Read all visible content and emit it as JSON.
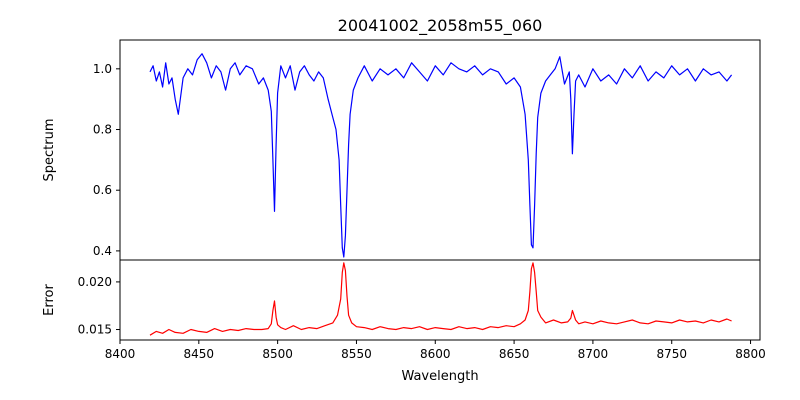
{
  "chart_data": {
    "title": "20041002_2058m55_060",
    "xlabel": "Wavelength",
    "xlim": [
      8400,
      8806
    ],
    "xticks": [
      "8400",
      "8450",
      "8500",
      "8550",
      "8600",
      "8650",
      "8700",
      "8750",
      "8800"
    ],
    "colors": {
      "spectrum": "#0000ff",
      "error": "#ff0000",
      "axes": "#000000"
    },
    "panels": [
      {
        "type": "line",
        "ylabel": "Spectrum",
        "ylim": [
          0.37,
          1.095
        ],
        "yticks": [
          "0.4",
          "0.6",
          "0.8",
          "1.0"
        ],
        "series": [
          {
            "color": "#0000ff",
            "x": [
              8419,
              8421,
              8423,
              8425,
              8427,
              8429,
              8431,
              8433,
              8435,
              8437,
              8440,
              8443,
              8446,
              8449,
              8452,
              8455,
              8458,
              8461,
              8464,
              8467,
              8470,
              8473,
              8476,
              8480,
              8484,
              8488,
              8491,
              8494,
              8496,
              8497,
              8498,
              8499,
              8500,
              8502,
              8505,
              8508,
              8511,
              8514,
              8517,
              8520,
              8523,
              8526,
              8529,
              8532,
              8535,
              8537,
              8539,
              8540,
              8541,
              8542,
              8543,
              8544,
              8545,
              8546,
              8548,
              8551,
              8555,
              8560,
              8565,
              8570,
              8575,
              8580,
              8585,
              8590,
              8595,
              8600,
              8605,
              8610,
              8615,
              8620,
              8625,
              8630,
              8635,
              8640,
              8645,
              8650,
              8654,
              8657,
              8659,
              8660,
              8661,
              8662,
              8663,
              8664,
              8665,
              8667,
              8670,
              8673,
              8676,
              8679,
              8682,
              8685,
              8686,
              8687,
              8688,
              8689,
              8691,
              8695,
              8700,
              8705,
              8710,
              8715,
              8720,
              8725,
              8730,
              8735,
              8740,
              8745,
              8750,
              8755,
              8760,
              8765,
              8770,
              8775,
              8780,
              8785,
              8788
            ],
            "y": [
              0.99,
              1.01,
              0.96,
              0.99,
              0.94,
              1.02,
              0.95,
              0.97,
              0.9,
              0.85,
              0.97,
              1.0,
              0.98,
              1.03,
              1.05,
              1.02,
              0.97,
              1.01,
              0.99,
              0.93,
              1.0,
              1.02,
              0.98,
              1.01,
              1.0,
              0.95,
              0.97,
              0.93,
              0.86,
              0.7,
              0.53,
              0.75,
              0.92,
              1.01,
              0.97,
              1.01,
              0.93,
              0.99,
              1.01,
              0.98,
              0.96,
              0.99,
              0.97,
              0.9,
              0.84,
              0.8,
              0.7,
              0.55,
              0.41,
              0.38,
              0.45,
              0.6,
              0.75,
              0.85,
              0.93,
              0.97,
              1.01,
              0.96,
              1.0,
              0.98,
              1.0,
              0.97,
              1.02,
              0.99,
              0.96,
              1.01,
              0.98,
              1.02,
              1.0,
              0.99,
              1.01,
              0.98,
              1.0,
              0.99,
              0.95,
              0.97,
              0.94,
              0.85,
              0.7,
              0.55,
              0.42,
              0.41,
              0.55,
              0.72,
              0.84,
              0.92,
              0.96,
              0.98,
              1.0,
              1.04,
              0.95,
              0.99,
              0.9,
              0.72,
              0.85,
              0.96,
              0.98,
              0.94,
              1.0,
              0.96,
              0.98,
              0.95,
              1.0,
              0.97,
              1.01,
              0.96,
              0.99,
              0.97,
              1.01,
              0.98,
              1.0,
              0.96,
              1.0,
              0.98,
              0.99,
              0.96,
              0.98
            ]
          }
        ]
      },
      {
        "type": "line",
        "ylabel": "Error",
        "ylim": [
          0.0139,
          0.0223
        ],
        "yticks": [
          "0.015",
          "0.020"
        ],
        "series": [
          {
            "color": "#ff0000",
            "x": [
              8419,
              8423,
              8427,
              8431,
              8435,
              8440,
              8445,
              8450,
              8455,
              8460,
              8465,
              8470,
              8475,
              8480,
              8485,
              8490,
              8494,
              8496,
              8497,
              8498,
              8499,
              8500,
              8502,
              8505,
              8510,
              8515,
              8520,
              8525,
              8530,
              8535,
              8538,
              8540,
              8541,
              8542,
              8543,
              8544,
              8545,
              8547,
              8550,
              8555,
              8560,
              8565,
              8570,
              8575,
              8580,
              8585,
              8590,
              8595,
              8600,
              8605,
              8610,
              8615,
              8620,
              8625,
              8630,
              8635,
              8640,
              8645,
              8650,
              8654,
              8657,
              8659,
              8660,
              8661,
              8662,
              8663,
              8664,
              8665,
              8667,
              8670,
              8675,
              8680,
              8684,
              8686,
              8687,
              8688,
              8689,
              8691,
              8695,
              8700,
              8705,
              8710,
              8715,
              8720,
              8725,
              8730,
              8735,
              8740,
              8745,
              8750,
              8755,
              8760,
              8765,
              8770,
              8775,
              8780,
              8785,
              8788
            ],
            "y": [
              0.0144,
              0.0148,
              0.0146,
              0.015,
              0.0147,
              0.0146,
              0.015,
              0.0148,
              0.0147,
              0.0151,
              0.0148,
              0.015,
              0.0149,
              0.0151,
              0.015,
              0.015,
              0.0151,
              0.0156,
              0.017,
              0.018,
              0.0163,
              0.0155,
              0.0152,
              0.015,
              0.0154,
              0.015,
              0.0152,
              0.0151,
              0.0154,
              0.0157,
              0.0165,
              0.0182,
              0.021,
              0.022,
              0.0212,
              0.0185,
              0.0165,
              0.0157,
              0.0153,
              0.0152,
              0.015,
              0.0153,
              0.0151,
              0.015,
              0.0152,
              0.0151,
              0.0153,
              0.015,
              0.0152,
              0.0151,
              0.015,
              0.0153,
              0.0151,
              0.0152,
              0.015,
              0.0153,
              0.0152,
              0.0154,
              0.0153,
              0.0156,
              0.016,
              0.017,
              0.019,
              0.0214,
              0.022,
              0.021,
              0.019,
              0.017,
              0.0163,
              0.0157,
              0.016,
              0.0157,
              0.0158,
              0.0162,
              0.017,
              0.0165,
              0.016,
              0.0156,
              0.0158,
              0.0156,
              0.0159,
              0.0157,
              0.0156,
              0.0158,
              0.016,
              0.0157,
              0.0156,
              0.0159,
              0.0158,
              0.0157,
              0.016,
              0.0158,
              0.0159,
              0.0157,
              0.016,
              0.0158,
              0.0161,
              0.0159
            ]
          }
        ]
      }
    ]
  }
}
